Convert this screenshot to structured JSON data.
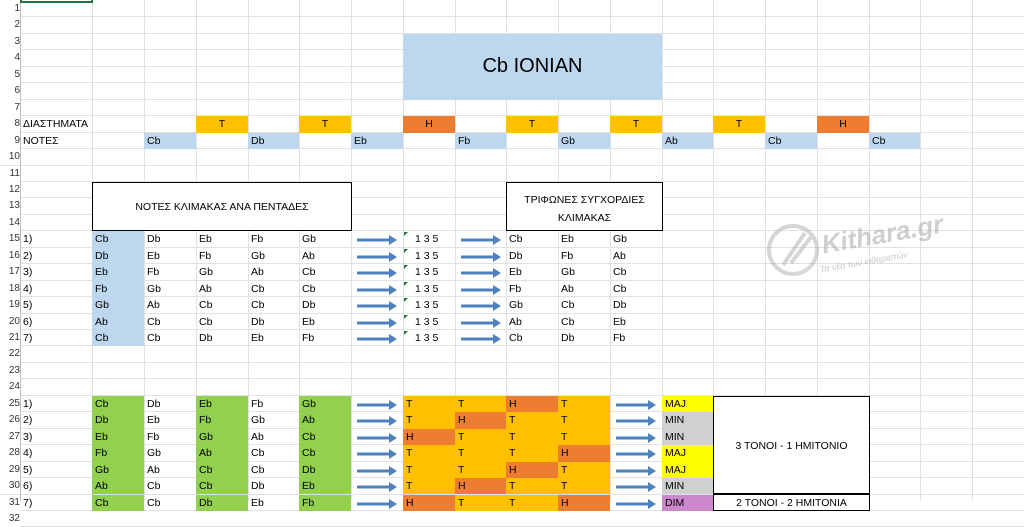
{
  "title": "Cb IONIAN",
  "labels": {
    "intervals": "ΔΙΑΣΤΗΜΑΤΑ",
    "notes": "ΝΟΤΕΣ",
    "pentads_header": "ΝΟΤΕΣ ΚΛΙΜΑΚΑΣ ΑΝΑ ΠΕΝΤΑΔΕΣ",
    "triads_header_1": "ΤΡΙΦΩΝΕΣ ΣΥΓΧΟΡΔΙΕΣ",
    "triads_header_2": "ΚΛΙΜΑΚΑΣ",
    "summary_1": "3 ΤΟΝΟΙ - 1 ΗΜΙΤΟΝΙΟ",
    "summary_2": "2 ΤΟΝΟΙ - 2 ΗΜΙΤΟΝΙΑ",
    "formula": "1 3 5"
  },
  "row_numbers": [
    "1",
    "2",
    "3",
    "4",
    "5",
    "6",
    "7",
    "8",
    "9",
    "10",
    "11",
    "12",
    "13",
    "14",
    "15",
    "16",
    "17",
    "18",
    "19",
    "20",
    "21",
    "22",
    "23",
    "24",
    "25",
    "26",
    "27",
    "28",
    "29",
    "30",
    "31",
    "32"
  ],
  "intervals": [
    "T",
    "T",
    "H",
    "T",
    "T",
    "T",
    "H"
  ],
  "scale_notes": [
    "Cb",
    "Db",
    "Eb",
    "Fb",
    "Gb",
    "Ab",
    "Cb",
    "Cb"
  ],
  "degrees": [
    "1)",
    "2)",
    "3)",
    "4)",
    "5)",
    "6)",
    "7)"
  ],
  "pentads": [
    [
      "Cb",
      "Db",
      "Eb",
      "Fb",
      "Gb"
    ],
    [
      "Db",
      "Eb",
      "Fb",
      "Gb",
      "Ab"
    ],
    [
      "Eb",
      "Fb",
      "Gb",
      "Ab",
      "Cb"
    ],
    [
      "Fb",
      "Gb",
      "Ab",
      "Cb",
      "Cb"
    ],
    [
      "Gb",
      "Ab",
      "Cb",
      "Cb",
      "Db"
    ],
    [
      "Ab",
      "Cb",
      "Cb",
      "Db",
      "Eb"
    ],
    [
      "Cb",
      "Cb",
      "Db",
      "Eb",
      "Fb"
    ]
  ],
  "triads": [
    [
      "Cb",
      "Eb",
      "Gb"
    ],
    [
      "Db",
      "Fb",
      "Ab"
    ],
    [
      "Eb",
      "Gb",
      "Cb"
    ],
    [
      "Fb",
      "Ab",
      "Cb"
    ],
    [
      "Gb",
      "Cb",
      "Db"
    ],
    [
      "Ab",
      "Cb",
      "Eb"
    ],
    [
      "Cb",
      "Db",
      "Fb"
    ]
  ],
  "lower_intervals": [
    [
      "T",
      "T",
      "H",
      "T"
    ],
    [
      "T",
      "H",
      "T",
      "T"
    ],
    [
      "H",
      "T",
      "T",
      "T"
    ],
    [
      "T",
      "T",
      "T",
      "H"
    ],
    [
      "T",
      "T",
      "H",
      "T"
    ],
    [
      "T",
      "H",
      "T",
      "T"
    ],
    [
      "H",
      "T",
      "T",
      "H"
    ]
  ],
  "qualities": [
    "MAJ",
    "MIN",
    "MIN",
    "MAJ",
    "MAJ",
    "MIN",
    "DIM"
  ],
  "watermark": {
    "brand": "Kithara.gr",
    "tagline": "Τα νέα των κιθαριστών"
  },
  "colors": {
    "title_bg": "#bdd7ee",
    "tone": "#ffc000",
    "half": "#ed7d31",
    "note_bg": "#bdd7ee",
    "green": "#92d050",
    "maj": "#ffff00",
    "min": "#d0d0d0",
    "dim": "#cc88cc",
    "arrow": "#4f81bd"
  }
}
